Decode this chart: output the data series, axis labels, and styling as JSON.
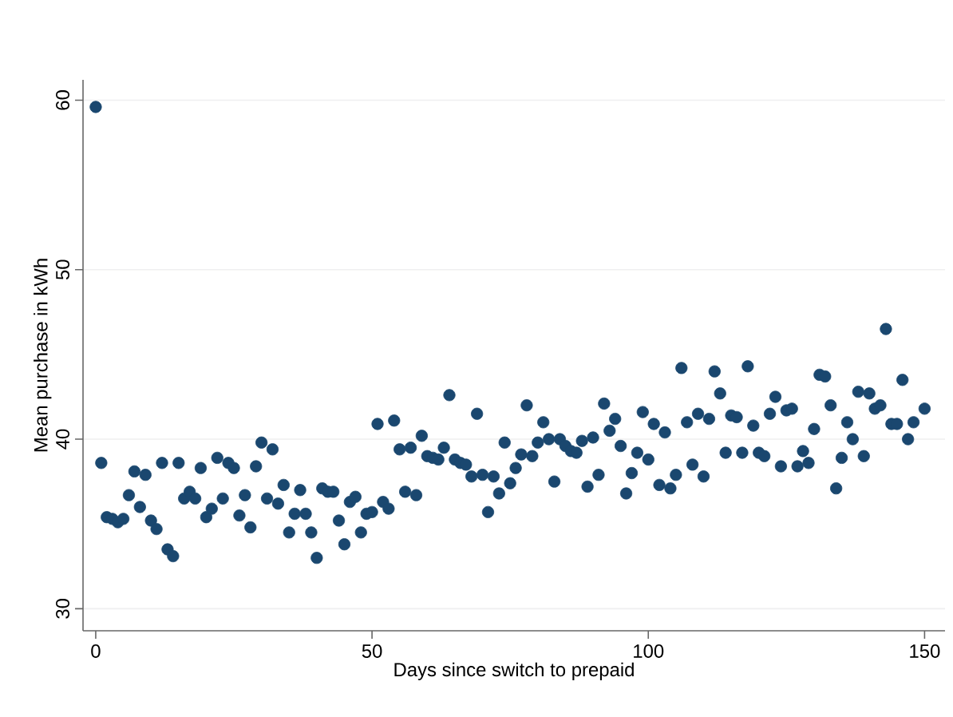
{
  "chart_data": {
    "type": "scatter",
    "xlabel": "Days since switch to prepaid",
    "ylabel": "Mean purchase in kWh",
    "x": [
      0,
      1,
      2,
      3,
      4,
      5,
      6,
      7,
      8,
      9,
      10,
      11,
      12,
      13,
      14,
      15,
      16,
      17,
      18,
      19,
      20,
      21,
      22,
      23,
      24,
      25,
      26,
      27,
      28,
      29,
      30,
      31,
      32,
      33,
      34,
      35,
      36,
      37,
      38,
      39,
      40,
      41,
      42,
      43,
      44,
      45,
      46,
      47,
      48,
      49,
      50,
      51,
      52,
      53,
      54,
      55,
      56,
      57,
      58,
      59,
      60,
      61,
      62,
      63,
      64,
      65,
      66,
      67,
      68,
      69,
      70,
      71,
      72,
      73,
      74,
      75,
      76,
      77,
      78,
      79,
      80,
      81,
      82,
      83,
      84,
      85,
      86,
      87,
      88,
      89,
      90,
      91,
      92,
      93,
      94,
      95,
      96,
      97,
      98,
      99,
      100,
      101,
      102,
      103,
      104,
      105,
      106,
      107,
      108,
      109,
      110,
      111,
      112,
      113,
      114,
      115,
      116,
      117,
      118,
      119,
      120,
      121,
      122,
      123,
      124,
      125,
      126,
      127,
      128,
      129,
      130,
      131,
      132,
      133,
      134,
      135,
      136,
      137,
      138,
      139,
      140,
      141,
      142,
      143,
      144,
      145,
      146,
      147,
      148,
      150
    ],
    "values": [
      59.6,
      38.6,
      35.4,
      35.3,
      35.1,
      35.3,
      36.7,
      38.1,
      36.0,
      37.9,
      35.2,
      34.7,
      38.6,
      33.5,
      33.1,
      38.6,
      36.5,
      36.9,
      36.5,
      38.3,
      35.4,
      35.9,
      38.9,
      36.5,
      38.6,
      38.3,
      35.5,
      36.7,
      34.8,
      38.4,
      39.8,
      36.5,
      39.4,
      36.2,
      37.3,
      34.5,
      35.6,
      37.0,
      35.6,
      34.5,
      33.0,
      37.1,
      36.9,
      36.9,
      35.2,
      33.8,
      36.3,
      36.6,
      34.5,
      35.6,
      35.7,
      40.9,
      36.3,
      35.9,
      41.1,
      39.4,
      36.9,
      39.5,
      36.7,
      40.2,
      39.0,
      38.9,
      38.8,
      39.5,
      42.6,
      38.8,
      38.6,
      38.5,
      37.8,
      41.5,
      37.9,
      35.7,
      37.8,
      36.8,
      39.8,
      37.4,
      38.3,
      39.1,
      42.0,
      39.0,
      39.8,
      41.0,
      40.0,
      37.5,
      40.0,
      39.6,
      39.3,
      39.2,
      39.9,
      37.2,
      40.1,
      37.9,
      42.1,
      40.5,
      41.2,
      39.6,
      36.8,
      38.0,
      39.2,
      41.6,
      38.8,
      40.9,
      37.3,
      40.4,
      37.1,
      37.9,
      44.2,
      41.0,
      38.5,
      41.5,
      37.8,
      41.2,
      44.0,
      42.7,
      39.2,
      41.4,
      41.3,
      39.2,
      44.3,
      40.8,
      39.2,
      39.0,
      41.5,
      42.5,
      38.4,
      41.7,
      41.8,
      38.4,
      39.3,
      38.6,
      40.6,
      43.8,
      43.7,
      42.0,
      37.1,
      38.9,
      41.0,
      40.0,
      42.8,
      39.0,
      42.7,
      41.8,
      42.0,
      46.5,
      40.9,
      40.9,
      43.5,
      40.0,
      41.0,
      41.8
    ],
    "color": "#1a476f",
    "marker": "circle",
    "grid": "y",
    "xlim": [
      -2.3,
      153.7
    ],
    "ylim": [
      28.7,
      61.2
    ],
    "xticks": [
      0,
      50,
      100,
      150
    ],
    "yticks": [
      30,
      40,
      50,
      60
    ]
  }
}
